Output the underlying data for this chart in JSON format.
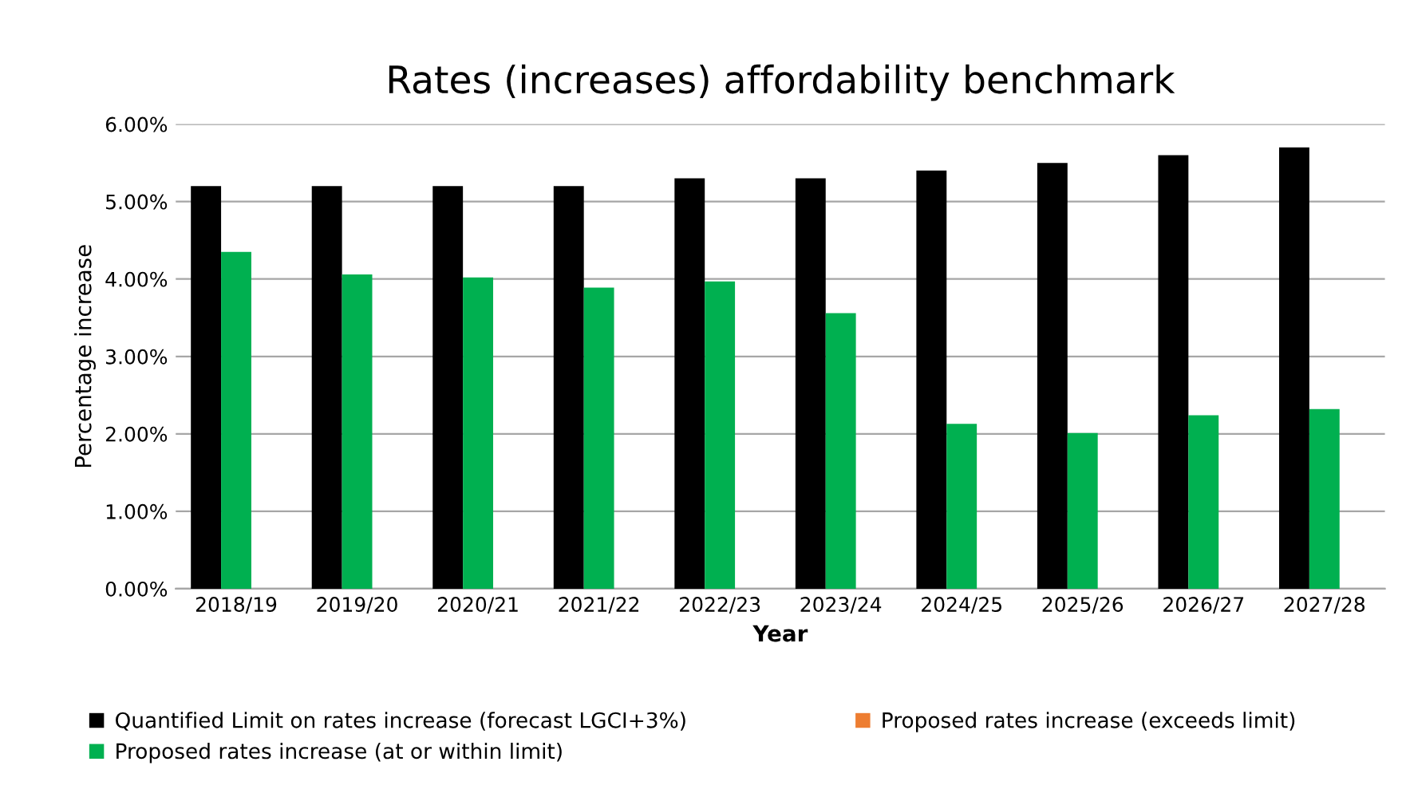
{
  "chart_data": {
    "type": "bar",
    "title": "Rates (increases) affordability benchmark",
    "xlabel": "Year",
    "ylabel": "Percentage increase",
    "categories": [
      "2018/19",
      "2019/20",
      "2020/21",
      "2021/22",
      "2022/23",
      "2023/24",
      "2024/25",
      "2025/26",
      "2026/27",
      "2027/28"
    ],
    "series": [
      {
        "name": "Quantified Limit on rates increase (forecast LGCI+3%)",
        "color": "#000000",
        "values": [
          5.2,
          5.2,
          5.2,
          5.2,
          5.3,
          5.3,
          5.4,
          5.5,
          5.6,
          5.7
        ]
      },
      {
        "name": "Proposed rates increase (at or within limit)",
        "color": "#00b050",
        "values": [
          4.35,
          4.06,
          4.02,
          3.89,
          3.97,
          3.56,
          2.13,
          2.01,
          2.24,
          2.32
        ]
      },
      {
        "name": "Proposed rates increase (exceeds limit)",
        "color": "#ed7d31",
        "values": [
          null,
          null,
          null,
          null,
          null,
          null,
          null,
          null,
          null,
          null
        ]
      }
    ],
    "ylim": [
      0,
      6
    ],
    "yticks": [
      {
        "value": 0,
        "label": "0.00%"
      },
      {
        "value": 1,
        "label": "1.00%"
      },
      {
        "value": 2,
        "label": "2.00%"
      },
      {
        "value": 3,
        "label": "3.00%"
      },
      {
        "value": 4,
        "label": "4.00%"
      },
      {
        "value": 5,
        "label": "5.00%"
      },
      {
        "value": 6,
        "label": "6.00%"
      }
    ],
    "grid": "y",
    "legend": "bottom"
  }
}
